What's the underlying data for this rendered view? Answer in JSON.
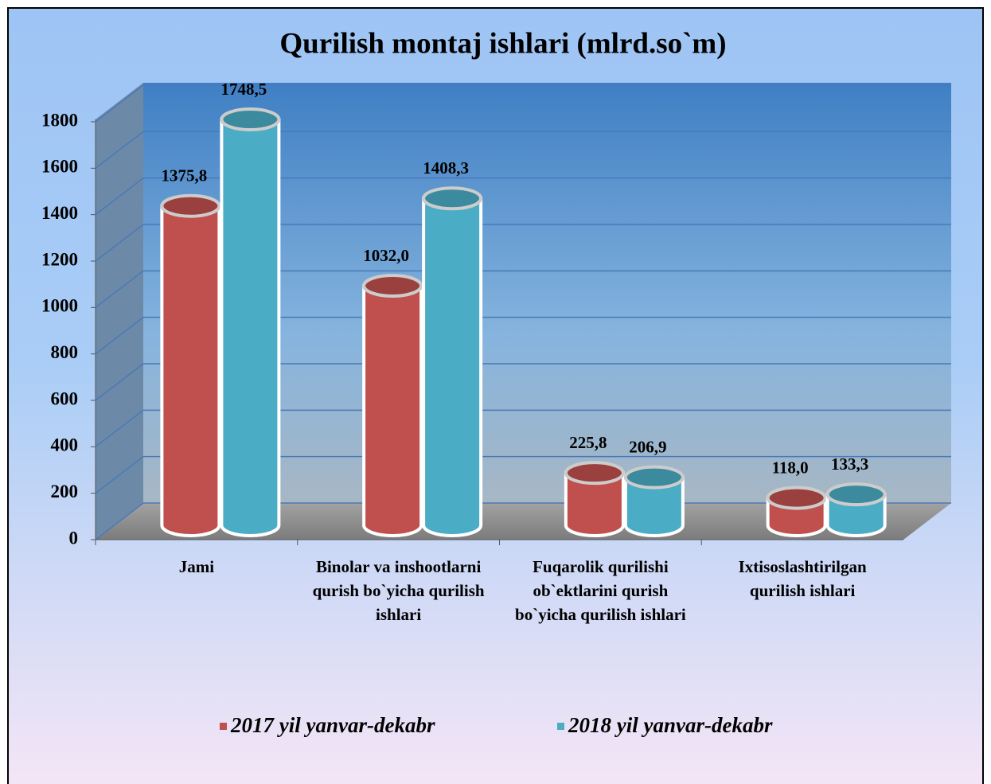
{
  "chart_data": {
    "type": "bar3d",
    "title": "Qurilish montaj ishlari  (mlrd.so`m)",
    "categories": [
      "Jami",
      "Binolar va inshootlarni qurish bo`yicha qurilish ishlari",
      "Fuqarolik qurilishi ob`ektlarini qurish bo`yicha qurilish ishlari",
      "Ixtisoslashtirilgan qurilish ishlari"
    ],
    "series": [
      {
        "name": "2017 yil yanvar-dekabr",
        "color": "#c0504d",
        "values": [
          1375.8,
          1032.0,
          225.8,
          118.0
        ],
        "value_labels": [
          "1375,8",
          "1032,0",
          "225,8",
          "118,0"
        ]
      },
      {
        "name": "2018 yil yanvar-dekabr",
        "color": "#4bacc6",
        "values": [
          1748.5,
          1408.3,
          206.9,
          133.3
        ],
        "value_labels": [
          "1748,5",
          "1408,3",
          "206,9",
          "133,3"
        ]
      }
    ],
    "ylim": [
      0,
      1800
    ],
    "yticks": [
      0,
      200,
      400,
      600,
      800,
      1000,
      1200,
      1400,
      1600,
      1800
    ],
    "grid": true
  }
}
